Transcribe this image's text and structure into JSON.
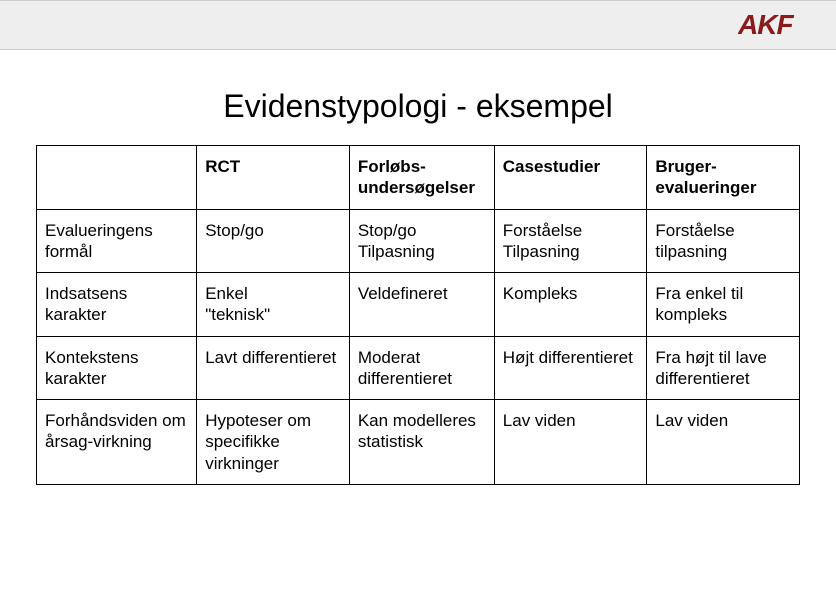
{
  "logo": {
    "text": "AKF",
    "color": "#8b1a1a",
    "font_size": 26,
    "font_weight": "bold",
    "font_style": "italic"
  },
  "header_bar": {
    "background_color": "#eeeeee",
    "border_color": "#cccccc"
  },
  "title": "Evidenstypologi - eksempel",
  "table": {
    "border_color": "#000000",
    "columns": [
      {
        "label": ""
      },
      {
        "label": "RCT"
      },
      {
        "label": "Forløbs-undersøgelser"
      },
      {
        "label": "Casestudier"
      },
      {
        "label": "Bruger-evalueringer"
      }
    ],
    "rows": [
      {
        "label": "Evalueringens formål",
        "cells": [
          "Stop/go",
          "Stop/go\nTilpasning",
          "Forståelse\nTilpasning",
          "Forståelse\ntilpasning"
        ]
      },
      {
        "label": "Indsatsens karakter",
        "cells": [
          "Enkel\n\"teknisk\"",
          "Veldefineret",
          "Kompleks",
          "Fra enkel til kompleks"
        ]
      },
      {
        "label": "Kontekstens karakter",
        "cells": [
          "Lavt differentieret",
          "Moderat differentieret",
          "Højt differentieret",
          "Fra højt til lave differentieret"
        ]
      },
      {
        "label": "Forhåndsviden om årsag-virkning",
        "cells": [
          "Hypoteser om specifikke virkninger",
          "Kan modelleres statistisk",
          "Lav viden",
          "Lav viden"
        ]
      }
    ]
  }
}
